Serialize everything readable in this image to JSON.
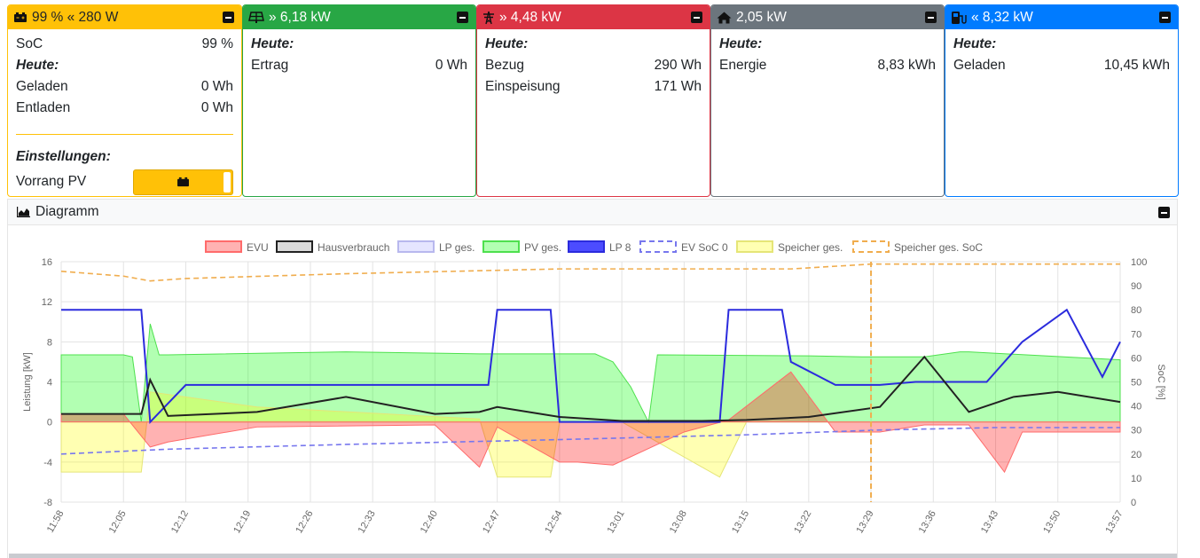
{
  "battery": {
    "header": "99 % « 280 W",
    "soc_label": "SoC",
    "soc_value": "99 %",
    "today_label": "Heute:",
    "charged_label": "Geladen",
    "charged_value": "0 Wh",
    "discharged_label": "Entladen",
    "discharged_value": "0 Wh",
    "settings_label": "Einstellungen:",
    "priority_label": "Vorrang PV",
    "color": "#ffc107"
  },
  "pv": {
    "header": "» 6,18 kW",
    "today_label": "Heute:",
    "yield_label": "Ertrag",
    "yield_value": "0 Wh",
    "color": "#28a745"
  },
  "grid": {
    "header": "» 4,48 kW",
    "today_label": "Heute:",
    "import_label": "Bezug",
    "import_value": "290 Wh",
    "export_label": "Einspeisung",
    "export_value": "171 Wh",
    "color": "#dc3545"
  },
  "house": {
    "header": "2,05 kW",
    "today_label": "Heute:",
    "energy_label": "Energie",
    "energy_value": "8,83 kWh",
    "color": "#6c757d"
  },
  "chargepoint": {
    "header": "« 8,32 kW",
    "today_label": "Heute:",
    "charged_label": "Geladen",
    "charged_value": "10,45 kWh",
    "color": "#007bff"
  },
  "diagram": {
    "title": "Diagramm",
    "icons": [
      "chart-area-icon",
      "minimize-icon"
    ]
  },
  "chart_data": {
    "type": "line",
    "legend": [
      {
        "name": "EVU",
        "color": "#ff6b6b",
        "fill": "rgba(255,0,0,0.3)",
        "style": "area"
      },
      {
        "name": "Hausverbrauch",
        "color": "#222222",
        "fill": "rgba(0,0,0,0.15)",
        "style": "line"
      },
      {
        "name": "LP ges.",
        "color": "#b8b8ee",
        "fill": "rgba(150,150,255,0.25)",
        "style": "area"
      },
      {
        "name": "PV ges.",
        "color": "#4ee04e",
        "fill": "rgba(0,255,0,0.3)",
        "style": "area"
      },
      {
        "name": "LP 8",
        "color": "#2b2bdd",
        "fill": "rgba(0,0,255,0.7)",
        "style": "line"
      },
      {
        "name": "EV SoC 0",
        "color": "#7777ee",
        "fill": "none",
        "style": "dashed"
      },
      {
        "name": "Speicher ges.",
        "color": "#e5e577",
        "fill": "rgba(255,255,0,0.3)",
        "style": "area"
      },
      {
        "name": "Speicher ges. SoC",
        "color": "#f0ad4e",
        "fill": "none",
        "style": "dashed"
      }
    ],
    "y_left": {
      "label": "Leistung [kW]",
      "min": -8,
      "max": 16,
      "ticks": [
        "-8",
        "-4",
        "0",
        "4",
        "8",
        "12",
        "16"
      ]
    },
    "y_right": {
      "label": "SoC [%]",
      "min": 0,
      "max": 100,
      "ticks": [
        "0",
        "10",
        "20",
        "30",
        "40",
        "50",
        "60",
        "70",
        "80",
        "90",
        "100"
      ]
    },
    "x_ticks": [
      "11:58",
      "12:05",
      "12:12",
      "12:19",
      "12:26",
      "12:33",
      "12:40",
      "12:47",
      "12:54",
      "13:01",
      "13:08",
      "13:15",
      "13:22",
      "13:29",
      "13:36",
      "13:43",
      "13:50",
      "13:57"
    ],
    "grid": true,
    "series": [
      {
        "name": "PV ges.",
        "x": [
          "11:58",
          "12:05",
          "12:06",
          "12:07",
          "12:08",
          "12:09",
          "12:10",
          "12:30",
          "12:45",
          "12:54",
          "12:58",
          "13:00",
          "13:02",
          "13:04",
          "13:05",
          "13:22",
          "13:28",
          "13:35",
          "13:39",
          "13:40",
          "13:57"
        ],
        "values": [
          6.7,
          6.7,
          6.5,
          0,
          9.8,
          6.7,
          6.7,
          7.0,
          6.8,
          6.8,
          6.8,
          6.0,
          3.5,
          0,
          6.7,
          6.6,
          6.5,
          6.5,
          7.0,
          7.0,
          6.2
        ]
      },
      {
        "name": "EVU",
        "x": [
          "11:58",
          "12:05",
          "12:08",
          "12:10",
          "12:20",
          "12:40",
          "12:45",
          "12:47",
          "12:54",
          "12:56",
          "13:00",
          "13:08",
          "13:13",
          "13:20",
          "13:25",
          "13:30",
          "13:35",
          "13:40",
          "13:44",
          "13:46",
          "13:57"
        ],
        "values": [
          0.8,
          0.8,
          -2.5,
          -2.0,
          -0.5,
          -0.3,
          -4.5,
          -0.5,
          -4.0,
          -4.0,
          -4.3,
          -1.0,
          0.2,
          5.0,
          -1.0,
          -1.0,
          -0.3,
          -0.3,
          -5.0,
          -1.0,
          -1.0
        ]
      },
      {
        "name": "Hausverbrauch",
        "x": [
          "11:58",
          "12:07",
          "12:08",
          "12:10",
          "12:20",
          "12:30",
          "12:40",
          "12:45",
          "12:47",
          "12:54",
          "13:01",
          "13:10",
          "13:15",
          "13:22",
          "13:30",
          "13:35",
          "13:40",
          "13:45",
          "13:50",
          "13:57"
        ],
        "values": [
          0.8,
          0.8,
          4.2,
          0.6,
          1.0,
          2.5,
          0.8,
          1.0,
          1.5,
          0.5,
          0.1,
          0.1,
          0.2,
          0.5,
          1.5,
          6.5,
          1.0,
          2.5,
          3.0,
          2.0
        ]
      },
      {
        "name": "LP 8",
        "x": [
          "11:58",
          "12:07",
          "12:08",
          "12:12",
          "12:46",
          "12:47",
          "12:53",
          "12:54",
          "13:12",
          "13:13",
          "13:19",
          "13:20",
          "13:25",
          "13:30",
          "13:34",
          "13:42",
          "13:46",
          "13:51",
          "13:55",
          "13:57"
        ],
        "values": [
          11.2,
          11.2,
          0,
          3.7,
          3.7,
          11.2,
          11.2,
          0,
          0,
          11.2,
          11.2,
          6.0,
          3.7,
          3.7,
          4.0,
          4.0,
          8.0,
          11.2,
          4.5,
          8.0
        ]
      },
      {
        "name": "Speicher ges.",
        "x": [
          "11:58",
          "12:07",
          "12:08",
          "12:20",
          "12:45",
          "12:47",
          "12:53",
          "12:54",
          "13:01",
          "13:12",
          "13:15",
          "13:57"
        ],
        "values": [
          -5.0,
          -5.0,
          3.0,
          1.5,
          0.3,
          -5.5,
          -5.5,
          0,
          0,
          -5.5,
          0,
          0
        ]
      },
      {
        "name": "EV SoC 0",
        "x": [
          "11:58",
          "12:10",
          "12:30",
          "12:54",
          "13:15",
          "13:30",
          "13:43",
          "13:57"
        ],
        "values": [
          20,
          22,
          24,
          26,
          28,
          30,
          31,
          31
        ]
      },
      {
        "name": "Speicher ges. SoC",
        "x": [
          "11:58",
          "12:05",
          "12:08",
          "12:12",
          "12:30",
          "12:54",
          "13:05",
          "13:20",
          "13:29",
          "13:35",
          "13:57"
        ],
        "values": [
          96,
          94,
          92,
          93,
          95,
          97,
          97,
          97,
          99,
          99,
          99
        ]
      }
    ]
  }
}
